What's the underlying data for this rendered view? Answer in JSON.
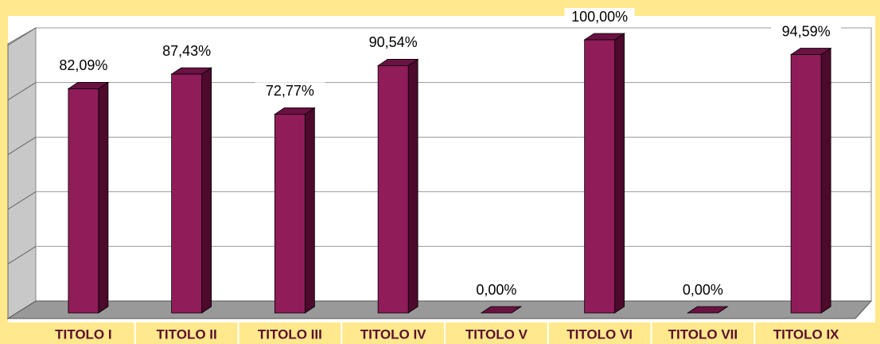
{
  "chart_data": {
    "type": "bar",
    "categories": [
      "TITOLO I",
      "TITOLO II",
      "TITOLO III",
      "TITOLO IV",
      "TITOLO V",
      "TITOLO VI",
      "TITOLO VII",
      "TITOLO IX"
    ],
    "values": [
      82.09,
      87.43,
      72.77,
      90.54,
      0,
      100,
      0,
      94.59
    ],
    "value_labels": [
      "82,09%",
      "87,43%",
      "72,77%",
      "90,54%",
      "0,00%",
      "100,00%",
      "0,00%",
      "94,59%"
    ],
    "color": "#901c5a",
    "ylim": [
      0,
      100
    ],
    "yticks": [
      0,
      20,
      40,
      60,
      80,
      100
    ],
    "grid": true
  }
}
